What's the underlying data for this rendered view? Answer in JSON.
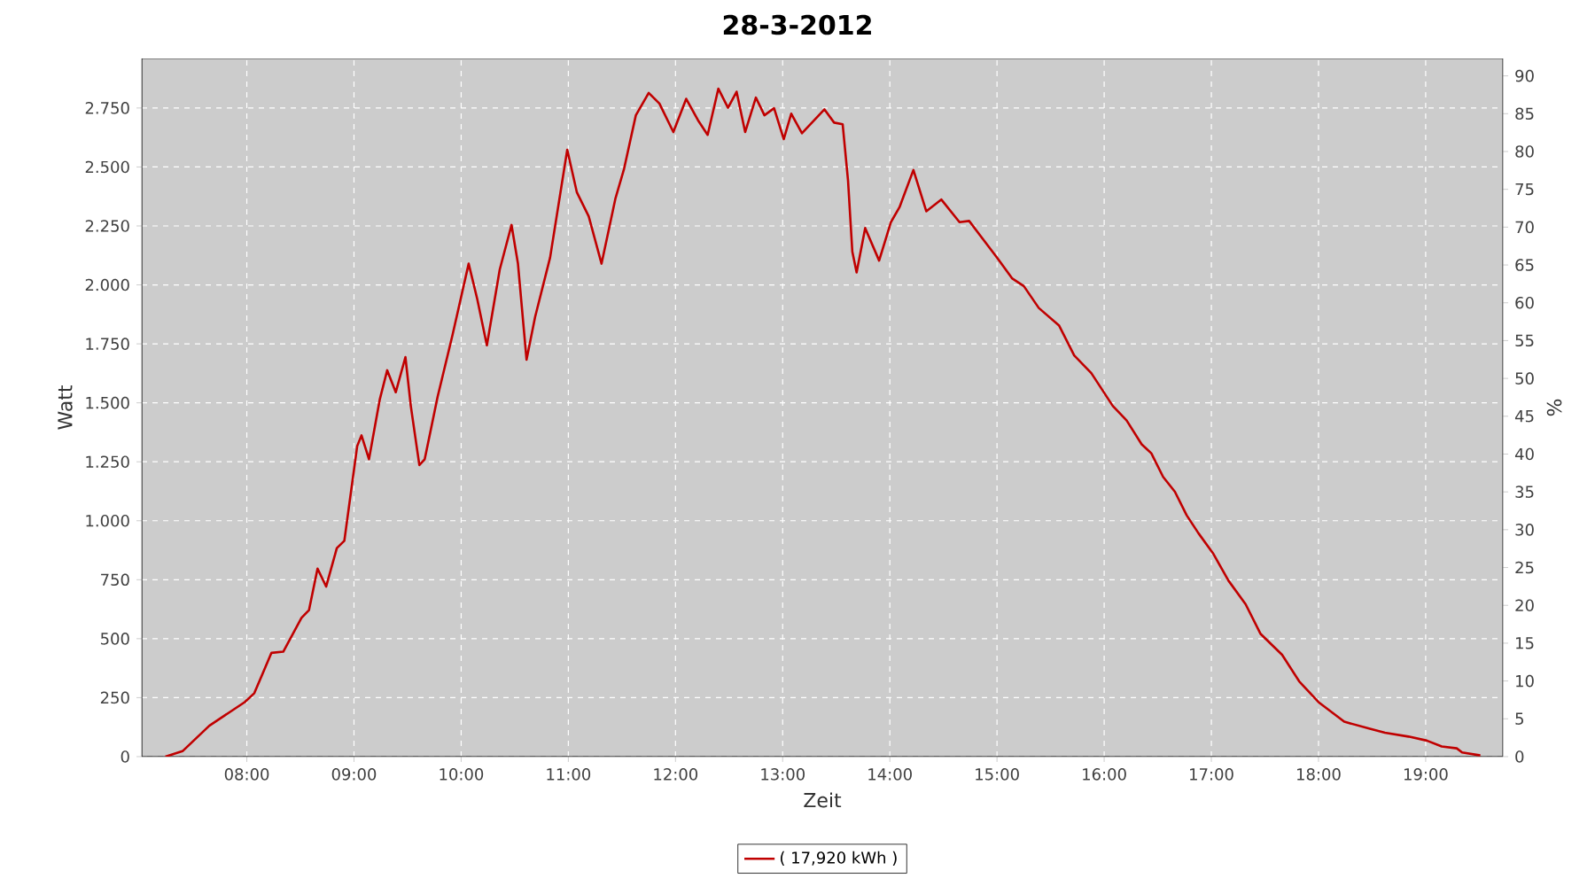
{
  "chart_data": {
    "type": "line",
    "title": "28-3-2012",
    "xlabel": "Zeit",
    "ylabel": "Watt",
    "y2label": "%",
    "x": [
      7.24,
      7.4,
      7.65,
      7.98,
      8.07,
      8.23,
      8.34,
      8.51,
      8.58,
      8.66,
      8.74,
      8.84,
      8.91,
      9.03,
      9.07,
      9.14,
      9.24,
      9.31,
      9.39,
      9.48,
      9.53,
      9.61,
      9.66,
      9.78,
      9.92,
      10.07,
      10.15,
      10.24,
      10.36,
      10.47,
      10.53,
      10.61,
      10.69,
      10.83,
      10.99,
      11.08,
      11.19,
      11.31,
      11.44,
      11.52,
      11.63,
      11.75,
      11.85,
      11.98,
      12.1,
      12.21,
      12.3,
      12.4,
      12.49,
      12.57,
      12.65,
      12.75,
      12.83,
      12.92,
      13.01,
      13.08,
      13.18,
      13.39,
      13.48,
      13.56,
      13.61,
      13.65,
      13.69,
      13.77,
      13.9,
      14.01,
      14.09,
      14.22,
      14.34,
      14.48,
      14.65,
      14.74,
      15.0,
      15.14,
      15.25,
      15.39,
      15.58,
      15.72,
      15.88,
      16.08,
      16.21,
      16.35,
      16.44,
      16.55,
      16.66,
      16.77,
      16.88,
      17.02,
      17.16,
      17.32,
      17.46,
      17.66,
      17.82,
      18.0,
      18.24,
      18.48,
      18.62,
      18.84,
      19.01,
      19.15,
      19.29,
      19.34,
      19.51
    ],
    "series": [
      {
        "name": "( 17,920 kWh )",
        "color": "#c00000",
        "values": [
          0,
          23,
          131,
          231,
          269,
          440,
          445,
          588,
          621,
          797,
          721,
          884,
          915,
          1317,
          1362,
          1261,
          1513,
          1638,
          1545,
          1694,
          1487,
          1236,
          1261,
          1525,
          1789,
          2090,
          1940,
          1744,
          2065,
          2254,
          2090,
          1683,
          1864,
          2116,
          2573,
          2392,
          2291,
          2090,
          2367,
          2492,
          2719,
          2814,
          2769,
          2648,
          2789,
          2698,
          2636,
          2832,
          2751,
          2819,
          2648,
          2794,
          2719,
          2749,
          2618,
          2726,
          2643,
          2744,
          2688,
          2681,
          2442,
          2141,
          2053,
          2241,
          2103,
          2266,
          2329,
          2487,
          2312,
          2362,
          2266,
          2271,
          2116,
          2028,
          1995,
          1902,
          1827,
          1701,
          1626,
          1487,
          1425,
          1324,
          1286,
          1186,
          1123,
          1023,
          947,
          859,
          746,
          646,
          520,
          432,
          319,
          231,
          148,
          118,
          101,
          85,
          68,
          43,
          35,
          18,
          5
        ]
      }
    ],
    "xlim": [
      7.02,
      19.72
    ],
    "xticks": [
      {
        "value": 8,
        "label": "08:00"
      },
      {
        "value": 9,
        "label": "09:00"
      },
      {
        "value": 10,
        "label": "10:00"
      },
      {
        "value": 11,
        "label": "11:00"
      },
      {
        "value": 12,
        "label": "12:00"
      },
      {
        "value": 13,
        "label": "13:00"
      },
      {
        "value": 14,
        "label": "14:00"
      },
      {
        "value": 15,
        "label": "15:00"
      },
      {
        "value": 16,
        "label": "16:00"
      },
      {
        "value": 17,
        "label": "17:00"
      },
      {
        "value": 18,
        "label": "18:00"
      },
      {
        "value": 19,
        "label": "19:00"
      }
    ],
    "ylim": [
      0,
      2960
    ],
    "yticks": [
      0,
      250,
      500,
      750,
      {
        "value": 1000,
        "label": "1.000"
      },
      {
        "value": 1250,
        "label": "1.250"
      },
      {
        "value": 1500,
        "label": "1.500"
      },
      {
        "value": 1750,
        "label": "1.750"
      },
      {
        "value": 2000,
        "label": "2.000"
      },
      {
        "value": 2250,
        "label": "2.250"
      },
      {
        "value": 2500,
        "label": "2.500"
      },
      {
        "value": 2750,
        "label": "2.750"
      }
    ],
    "y2lim": [
      0,
      92.3
    ],
    "y2ticks": [
      0,
      5,
      10,
      15,
      20,
      25,
      30,
      35,
      40,
      45,
      50,
      55,
      60,
      65,
      70,
      75,
      80,
      85,
      90
    ],
    "grid": true,
    "legend": "bottom",
    "marker": "none",
    "line_style": "solid"
  }
}
